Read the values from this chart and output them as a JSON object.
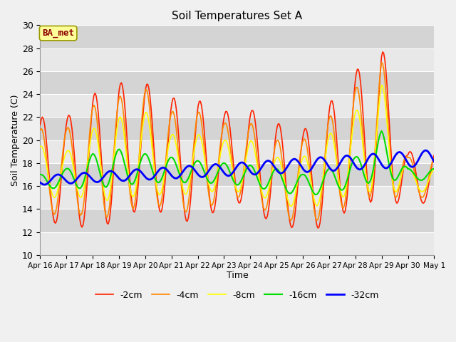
{
  "title": "Soil Temperatures Set A",
  "xlabel": "Time",
  "ylabel": "Soil Temperature (C)",
  "ylim": [
    10,
    30
  ],
  "yticks": [
    10,
    12,
    14,
    16,
    18,
    20,
    22,
    24,
    26,
    28,
    30
  ],
  "background_color": "#f0f0f0",
  "plot_bg_color": "#f0f0f0",
  "grid_color": "#ffffff",
  "band_colors": [
    "#e8e8e8",
    "#d8d8d8"
  ],
  "series": {
    "-2cm": {
      "color": "#ff2200",
      "lw": 1.2
    },
    "-4cm": {
      "color": "#ff8800",
      "lw": 1.2
    },
    "-8cm": {
      "color": "#ffff00",
      "lw": 1.2
    },
    "-16cm": {
      "color": "#00dd00",
      "lw": 1.5
    },
    "-32cm": {
      "color": "#0000ff",
      "lw": 2.0
    }
  },
  "n_days": 15,
  "hours_per_day": 24,
  "xtick_labels": [
    "Apr 16",
    "Apr 17",
    "Apr 18",
    "Apr 19",
    "Apr 20",
    "Apr 21",
    "Apr 22",
    "Apr 23",
    "Apr 24",
    "Apr 25",
    "Apr 26",
    "Apr 27",
    "Apr 28",
    "Apr 29",
    "Apr 30",
    "May 1"
  ],
  "annotation_text": "BA_met",
  "annotation_color": "#8b0000",
  "annotation_bg": "#ffff99",
  "annotation_border": "#999900"
}
